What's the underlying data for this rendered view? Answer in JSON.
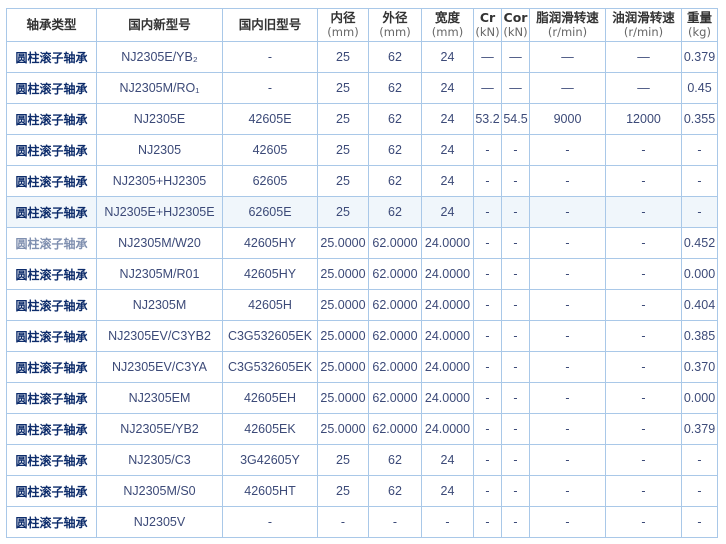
{
  "headers": [
    {
      "label": "轴承类型",
      "unit": ""
    },
    {
      "label": "国内新型号",
      "unit": ""
    },
    {
      "label": "国内旧型号",
      "unit": ""
    },
    {
      "label": "内径",
      "unit": "(mm)"
    },
    {
      "label": "外径",
      "unit": "(mm)"
    },
    {
      "label": "宽度",
      "unit": "(mm)"
    },
    {
      "label": "Cr",
      "unit": "(kN)"
    },
    {
      "label": "Cor",
      "unit": "(kN)"
    },
    {
      "label": "脂润滑转速",
      "unit": "(r/min)"
    },
    {
      "label": "油润滑转速",
      "unit": "(r/min)"
    },
    {
      "label": "重量",
      "unit": "(kg)"
    }
  ],
  "rows": [
    [
      "圆柱滚子轴承",
      "NJ2305E/YB₂",
      "-",
      "25",
      "62",
      "24",
      "—",
      "—",
      "—",
      "—",
      "0.379"
    ],
    [
      "圆柱滚子轴承",
      "NJ2305M/RO₁",
      "-",
      "25",
      "62",
      "24",
      "—",
      "—",
      "—",
      "—",
      "0.45"
    ],
    [
      "圆柱滚子轴承",
      "NJ2305E",
      "42605E",
      "25",
      "62",
      "24",
      "53.2",
      "54.5",
      "9000",
      "12000",
      "0.355"
    ],
    [
      "圆柱滚子轴承",
      "NJ2305",
      "42605",
      "25",
      "62",
      "24",
      "-",
      "-",
      "-",
      "-",
      "-"
    ],
    [
      "圆柱滚子轴承",
      "NJ2305+HJ2305",
      "62605",
      "25",
      "62",
      "24",
      "-",
      "-",
      "-",
      "-",
      "-"
    ],
    [
      "圆柱滚子轴承",
      "NJ2305E+HJ2305E",
      "62605E",
      "25",
      "62",
      "24",
      "-",
      "-",
      "-",
      "-",
      "-"
    ],
    [
      "圆柱滚子轴承",
      "NJ2305M/W20",
      "42605HY",
      "25.0000",
      "62.0000",
      "24.0000",
      "-",
      "-",
      "-",
      "-",
      "0.452"
    ],
    [
      "圆柱滚子轴承",
      "NJ2305M/R01",
      "42605HY",
      "25.0000",
      "62.0000",
      "24.0000",
      "-",
      "-",
      "-",
      "-",
      "0.000"
    ],
    [
      "圆柱滚子轴承",
      "NJ2305M",
      "42605H",
      "25.0000",
      "62.0000",
      "24.0000",
      "-",
      "-",
      "-",
      "-",
      "0.404"
    ],
    [
      "圆柱滚子轴承",
      "NJ2305EV/C3YB2",
      "C3G532605EK",
      "25.0000",
      "62.0000",
      "24.0000",
      "-",
      "-",
      "-",
      "-",
      "0.385"
    ],
    [
      "圆柱滚子轴承",
      "NJ2305EV/C3YA",
      "C3G532605EK",
      "25.0000",
      "62.0000",
      "24.0000",
      "-",
      "-",
      "-",
      "-",
      "0.370"
    ],
    [
      "圆柱滚子轴承",
      "NJ2305EM",
      "42605EH",
      "25.0000",
      "62.0000",
      "24.0000",
      "-",
      "-",
      "-",
      "-",
      "0.000"
    ],
    [
      "圆柱滚子轴承",
      "NJ2305E/YB2",
      "42605EK",
      "25.0000",
      "62.0000",
      "24.0000",
      "-",
      "-",
      "-",
      "-",
      "0.379"
    ],
    [
      "圆柱滚子轴承",
      "NJ2305/C3",
      "3G42605Y",
      "25",
      "62",
      "24",
      "-",
      "-",
      "-",
      "-",
      "-"
    ],
    [
      "圆柱滚子轴承",
      "NJ2305M/S0",
      "42605HT",
      "25",
      "62",
      "24",
      "-",
      "-",
      "-",
      "-",
      "-"
    ],
    [
      "圆柱滚子轴承",
      "NJ2305V",
      "-",
      "-",
      "-",
      "-",
      "-",
      "-",
      "-",
      "-",
      "-"
    ]
  ],
  "highlighted_row": 5
}
